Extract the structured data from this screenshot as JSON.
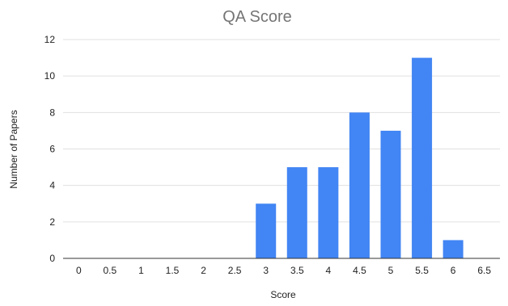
{
  "chart_data": {
    "type": "bar",
    "title": "QA Score",
    "xlabel": "Score",
    "ylabel": "Number of Papers",
    "categories": [
      "0",
      "0.5",
      "1",
      "1.5",
      "2",
      "2.5",
      "3",
      "3.5",
      "4",
      "4.5",
      "5",
      "5.5",
      "6",
      "6.5"
    ],
    "values": [
      0,
      0,
      0,
      0,
      0,
      0,
      3,
      5,
      5,
      8,
      7,
      11,
      1,
      0
    ],
    "ylim": [
      0,
      12
    ],
    "yticks": [
      0,
      2,
      4,
      6,
      8,
      10,
      12
    ],
    "grid": true,
    "legend": "none",
    "colors": {
      "bar": "#4285f4",
      "grid": "#e0e0e0",
      "title": "#757575",
      "text": "#222222"
    }
  }
}
